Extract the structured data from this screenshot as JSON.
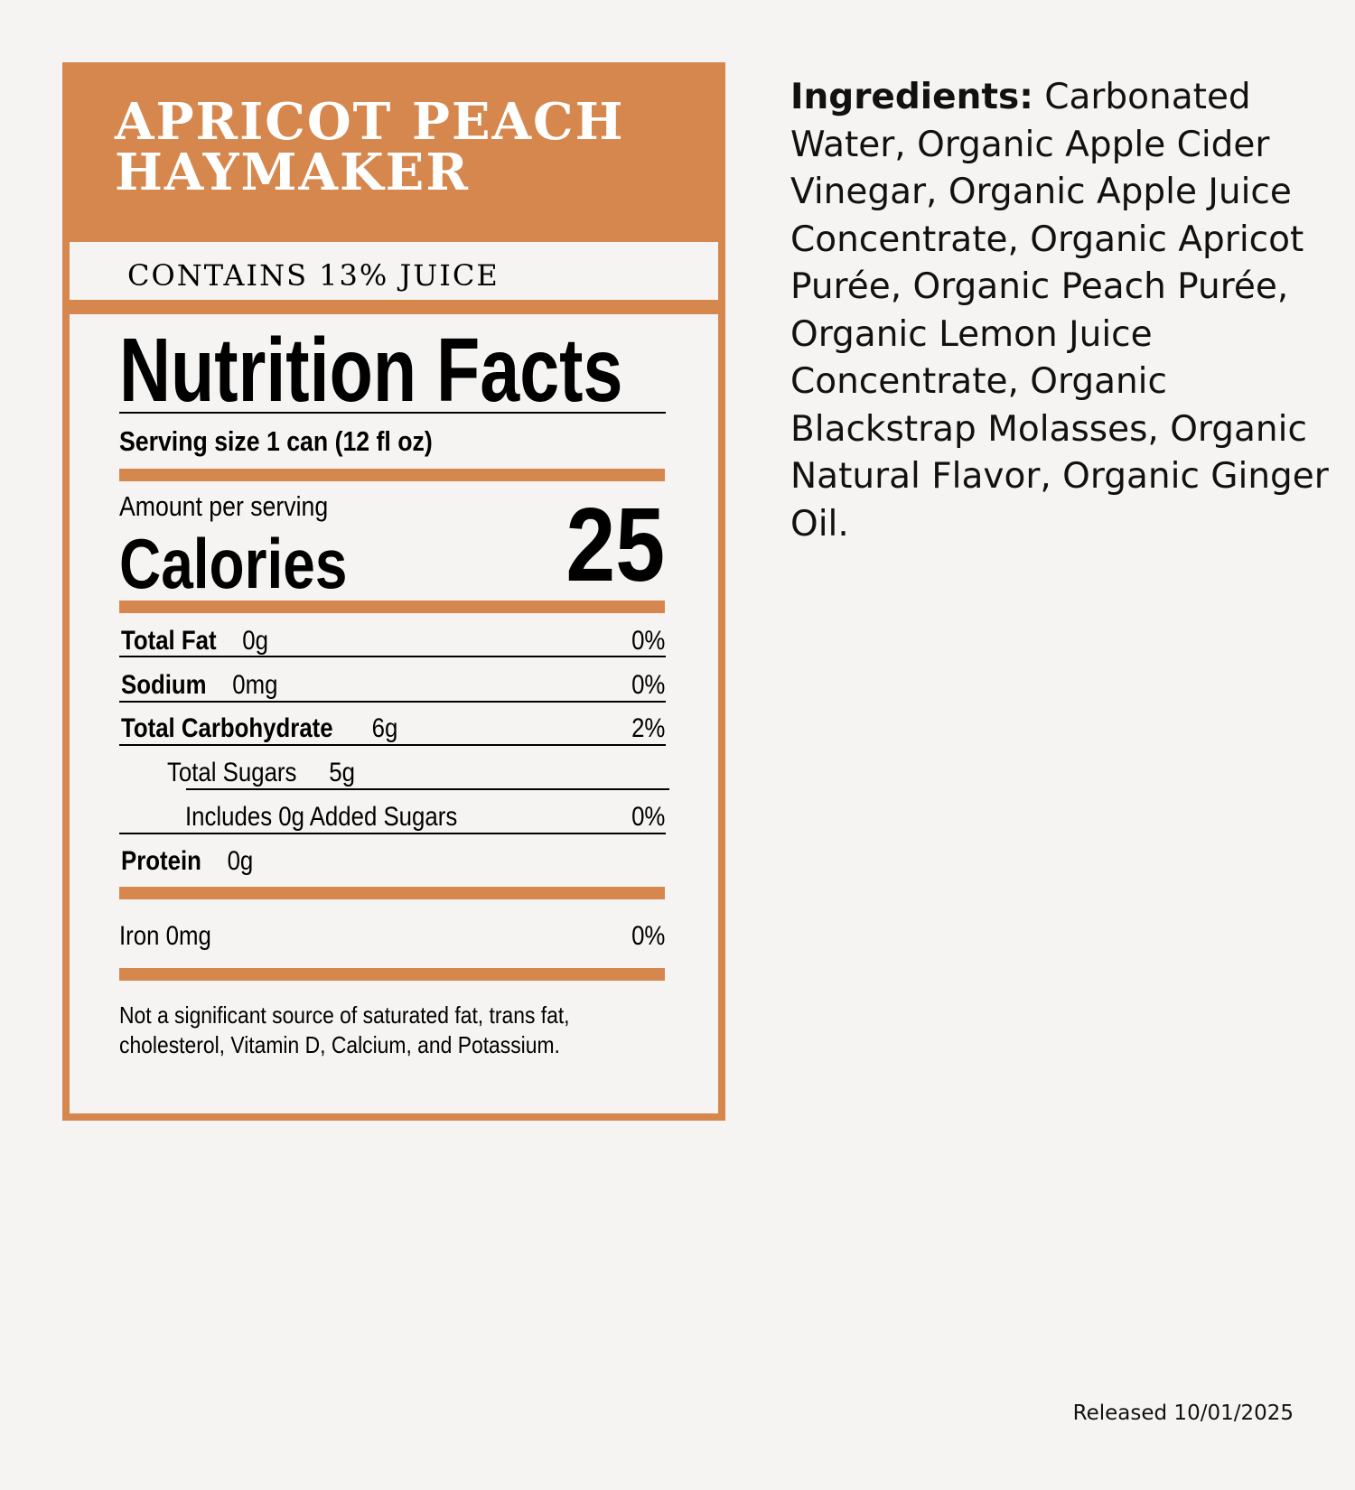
{
  "product": {
    "name": "APRICOT PEACH HAYMAKER",
    "name_line1": "APRICOT PEACH",
    "name_line2": "HAYMAKER",
    "juice_content": "CONTAINS 13% JUICE"
  },
  "nutrition": {
    "title": "Nutrition Facts",
    "serving_size": "Serving size 1 can (12 fl oz)",
    "amount_per_serving": "Amount per serving",
    "calories_label": "Calories",
    "calories_value": "25",
    "rows": [
      {
        "label": "Total Fat",
        "amount": "0g",
        "dv": "0%"
      },
      {
        "label": "Sodium",
        "amount": "0mg",
        "dv": "0%"
      },
      {
        "label": "Total Carbohydrate",
        "amount": "6g",
        "dv": "2%"
      },
      {
        "label": "Total Sugars",
        "amount": "5g",
        "dv": ""
      },
      {
        "label": "Includes 0g Added Sugars",
        "amount": "",
        "dv": "0%"
      },
      {
        "label": "Protein",
        "amount": "0g",
        "dv": ""
      }
    ],
    "iron": {
      "label": "Iron 0mg",
      "dv": "0%"
    },
    "footnote_line1": "Not a significant source of saturated fat, trans fat,",
    "footnote_line2": "cholesterol, Vitamin D, Calcium, and Potassium."
  },
  "ingredients": {
    "label": "Ingredients:",
    "text": "Carbonated Water, Organic Apple Cider Vinegar, Organic Apple Juice Concentrate, Organic Apricot Purée, Organic Peach Purée, Organic Lemon Juice Concentrate, Organic Blackstrap Molasses, Organic Natural Flavor, Organic Ginger Oil."
  },
  "released": "Released 10/01/2025",
  "colors": {
    "accent": "#d6874d",
    "background": "#f5f4f2",
    "text": "#000000"
  }
}
